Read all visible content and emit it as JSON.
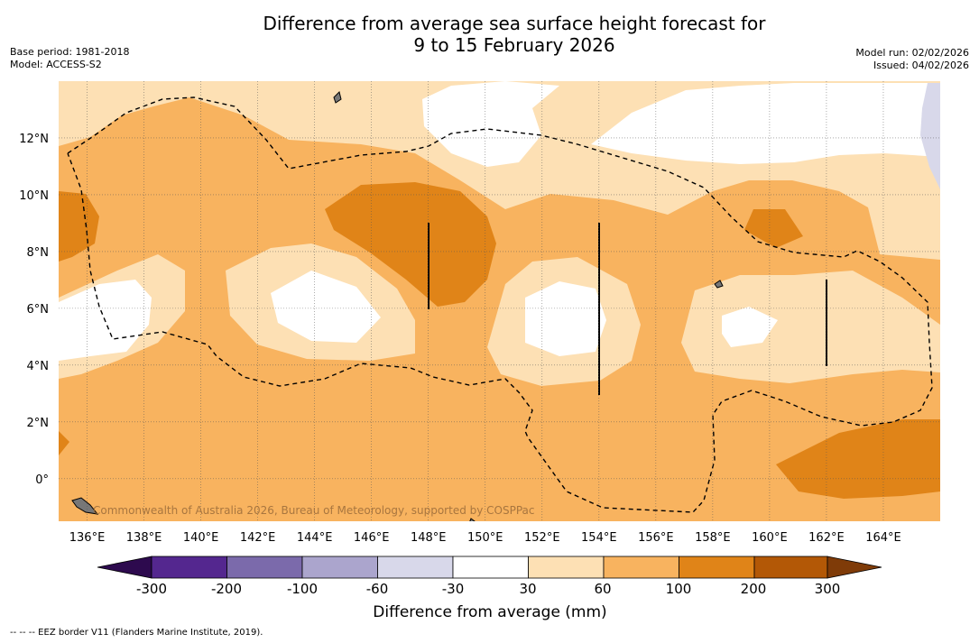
{
  "title": {
    "line1": "Difference from average sea surface height forecast for",
    "line2": "9 to 15 February 2026"
  },
  "meta_left": {
    "base_period": "Base period: 1981-2018",
    "model": "Model: ACCESS-S2"
  },
  "meta_right": {
    "model_run": "Model run: 02/02/2026",
    "issued": "Issued: 04/02/2026"
  },
  "map": {
    "lon_range": [
      135,
      166
    ],
    "lat_range": [
      -1.5,
      14
    ],
    "lon_ticks": [
      "136°E",
      "138°E",
      "140°E",
      "142°E",
      "144°E",
      "146°E",
      "148°E",
      "150°E",
      "152°E",
      "154°E",
      "156°E",
      "158°E",
      "160°E",
      "162°E",
      "164°E"
    ],
    "lat_ticks": [
      "12°N",
      "10°N",
      "8°N",
      "6°N",
      "4°N",
      "2°N",
      "0°"
    ],
    "copyright": "Commonwealth of Australia 2026, Bureau of Meteorology, supported by COSPPac"
  },
  "colorbar": {
    "title": "Difference from average (mm)",
    "labels": [
      "-300",
      "-200",
      "-100",
      "-60",
      "-30",
      "30",
      "60",
      "100",
      "200",
      "300"
    ],
    "colors": {
      "below_min": "#2d0a4e",
      "c1": "#54278f",
      "c2": "#7b6aab",
      "c3": "#aba5cd",
      "c4": "#d8d8ea",
      "c5": "#ffffff",
      "c6": "#fde0b4",
      "c7": "#f8b35f",
      "c8": "#e08418",
      "c9": "#b35806",
      "above_max": "#7f3b08"
    }
  },
  "footer": "-- -- -- EEZ border V11 (Flanders Marine Institute, 2019)."
}
